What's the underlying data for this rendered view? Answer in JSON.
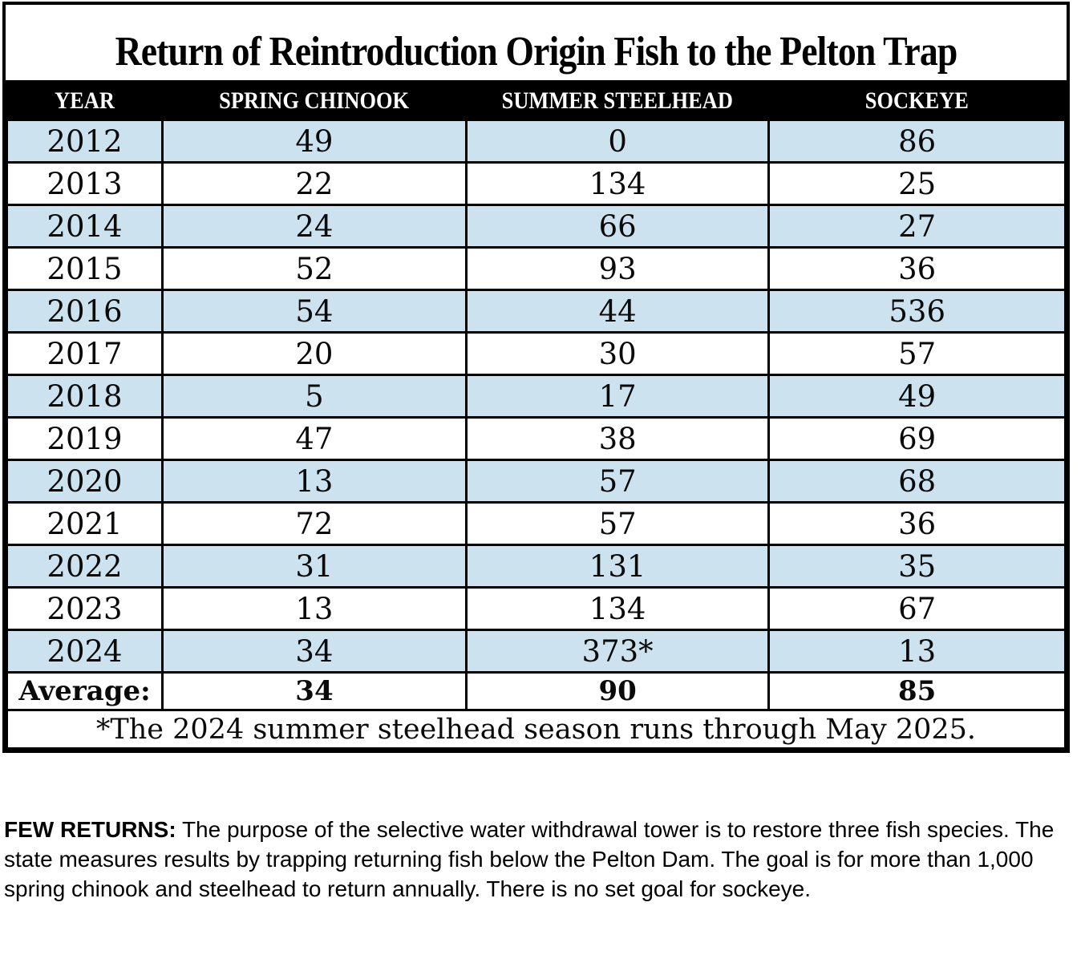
{
  "chart_data": {
    "type": "table",
    "title": "Return of Reintroduction Origin Fish to the Pelton Trap",
    "columns": [
      "YEAR",
      "SPRING CHINOOK",
      "SUMMER STEELHEAD",
      "SOCKEYE"
    ],
    "rows": [
      [
        "2012",
        49,
        0,
        86
      ],
      [
        "2013",
        22,
        134,
        25
      ],
      [
        "2014",
        24,
        66,
        27
      ],
      [
        "2015",
        52,
        93,
        36
      ],
      [
        "2016",
        54,
        44,
        536
      ],
      [
        "2017",
        20,
        30,
        57
      ],
      [
        "2018",
        5,
        17,
        49
      ],
      [
        "2019",
        47,
        38,
        69
      ],
      [
        "2020",
        13,
        57,
        68
      ],
      [
        "2021",
        72,
        57,
        36
      ],
      [
        "2022",
        31,
        131,
        35
      ],
      [
        "2023",
        13,
        134,
        67
      ],
      [
        "2024",
        34,
        "373*",
        13
      ]
    ],
    "average_row": {
      "label": "Average:",
      "values": [
        34,
        90,
        85
      ]
    },
    "footnote": "*The 2024 summer steelhead season runs through May 2025.",
    "layout_hints": {
      "row_alt_color": "#cce2ef",
      "header_bg": "#000000",
      "header_text_color": "#ffffff",
      "grid": "on"
    }
  },
  "caption": {
    "label": "FEW RETURNS:",
    "lines": [
      "The purpose of the selective water withdrawal tower is to restore three fish species.",
      "The state measures results by trapping returning fish below the Pelton Dam. The goal is for more",
      "than 1,000 spring chinook and steelhead to return annually. There is no set goal for sockeye."
    ]
  }
}
